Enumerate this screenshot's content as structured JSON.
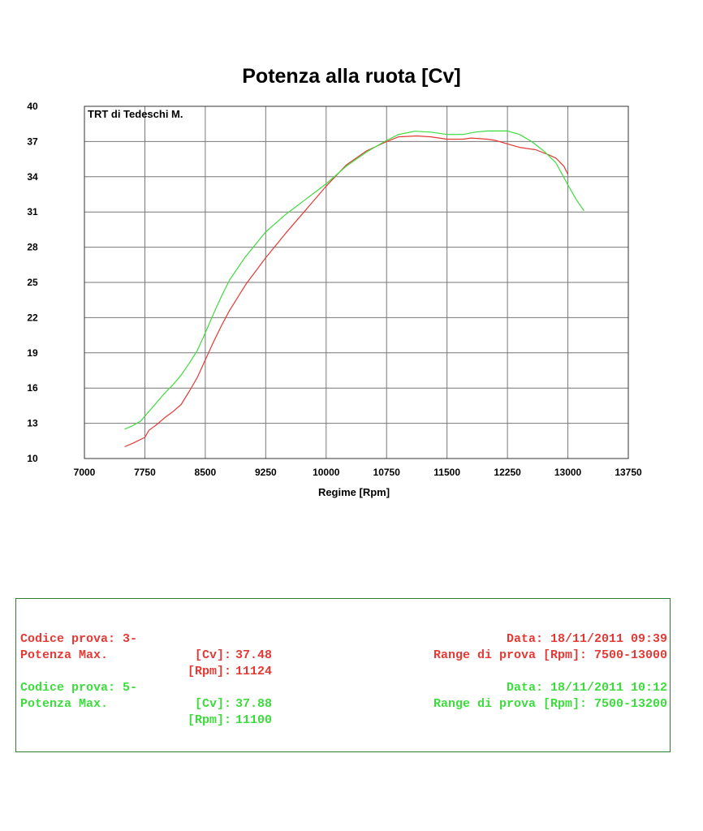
{
  "chart_data": {
    "type": "line",
    "title": "Potenza alla ruota  [Cv]",
    "xlabel": "Regime [Rpm]",
    "ylabel": "",
    "annotation": "TRT di Tedeschi M.",
    "xlim": [
      7000,
      13750
    ],
    "ylim": [
      10,
      40
    ],
    "xticks": [
      7000,
      7750,
      8500,
      9250,
      10000,
      10750,
      11500,
      12250,
      13000,
      13750
    ],
    "yticks": [
      10,
      13,
      16,
      19,
      22,
      25,
      28,
      31,
      34,
      37,
      40
    ],
    "grid": true,
    "series": [
      {
        "color": "#e53935",
        "x": [
          7500,
          7600,
          7750,
          7800,
          7900,
          8000,
          8100,
          8200,
          8300,
          8400,
          8500,
          8600,
          8700,
          8800,
          9000,
          9250,
          9500,
          9750,
          10000,
          10250,
          10500,
          10750,
          10900,
          11124,
          11300,
          11500,
          11700,
          11800,
          12000,
          12100,
          12250,
          12400,
          12600,
          12750,
          12850,
          12950,
          13000
        ],
        "y": [
          11.0,
          11.3,
          11.8,
          12.4,
          12.9,
          13.5,
          14.0,
          14.6,
          15.7,
          16.9,
          18.4,
          19.9,
          21.3,
          22.6,
          24.8,
          27.1,
          29.2,
          31.2,
          33.2,
          35.0,
          36.2,
          37.0,
          37.4,
          37.48,
          37.4,
          37.2,
          37.2,
          37.3,
          37.2,
          37.1,
          36.8,
          36.5,
          36.3,
          35.9,
          35.6,
          34.9,
          34.2
        ]
      },
      {
        "color": "#3ddc3d",
        "x": [
          7500,
          7600,
          7700,
          7800,
          7900,
          8000,
          8100,
          8200,
          8300,
          8400,
          8500,
          8600,
          8700,
          8800,
          9000,
          9250,
          9500,
          9750,
          10000,
          10250,
          10500,
          10750,
          10900,
          11100,
          11300,
          11500,
          11700,
          11850,
          12000,
          12100,
          12250,
          12400,
          12550,
          12700,
          12850,
          13000,
          13100,
          13200
        ],
        "y": [
          12.5,
          12.8,
          13.2,
          14.0,
          14.8,
          15.6,
          16.3,
          17.1,
          18.1,
          19.2,
          20.7,
          22.3,
          23.8,
          25.2,
          27.2,
          29.3,
          30.8,
          32.1,
          33.4,
          34.9,
          36.1,
          37.1,
          37.6,
          37.88,
          37.8,
          37.6,
          37.6,
          37.8,
          37.9,
          37.9,
          37.9,
          37.6,
          37.0,
          36.2,
          35.2,
          33.3,
          32.1,
          31.1
        ]
      }
    ]
  },
  "runs": [
    {
      "color": "#e53935",
      "codice": "Codice prova: 3-",
      "data": "Data: 18/11/2011 09:39",
      "potenza_label": "Potenza Max.",
      "cv_unit": "[Cv]:",
      "cv_value": "37.48",
      "range": "Range di prova [Rpm]: 7500-13000",
      "rpm_unit": "[Rpm]:",
      "rpm_value": "11124"
    },
    {
      "color": "#3ddc3d",
      "codice": "Codice prova: 5-",
      "data": "Data: 18/11/2011 10:12",
      "potenza_label": "Potenza Max.",
      "cv_unit": "[Cv]:",
      "cv_value": "37.88",
      "range": "Range di prova [Rpm]: 7500-13200",
      "rpm_unit": "[Rpm]:",
      "rpm_value": "11100"
    }
  ]
}
